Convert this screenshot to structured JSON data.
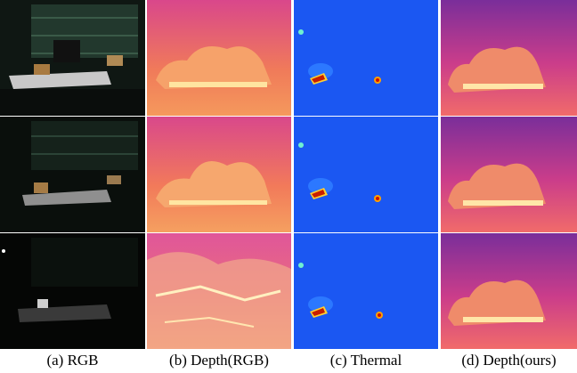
{
  "figure": {
    "columns": [
      {
        "key": "rgb",
        "caption": "(a) RGB"
      },
      {
        "key": "depth_rgb",
        "caption": "(b) Depth(RGB)"
      },
      {
        "key": "thermal",
        "caption": "(c) Thermal"
      },
      {
        "key": "depth_ours",
        "caption": "(d) Depth(ours)"
      }
    ],
    "rows": 3,
    "colors": {
      "rgb_bg": "#0d1410",
      "depth_far": "#7a2e9a",
      "depth_near": "#fff2b0",
      "thermal_bg": "#1a5cf0",
      "thermal_hot": "#ff2a00"
    }
  }
}
